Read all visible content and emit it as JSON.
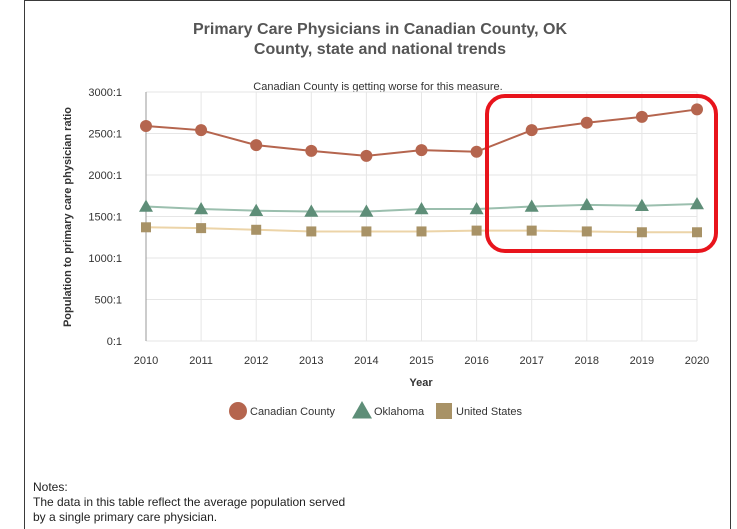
{
  "chart_data": {
    "type": "line",
    "title_line1": "Primary Care Physicians in Canadian County, OK",
    "title_line2": "County, state and national trends",
    "subtitle": "Canadian County is getting worse for this measure.",
    "xlabel": "Year",
    "ylabel": "Population to primary care physician ratio",
    "x": [
      2010,
      2011,
      2012,
      2013,
      2014,
      2015,
      2016,
      2017,
      2018,
      2019,
      2020
    ],
    "ylim": [
      0,
      3000
    ],
    "yticks": [
      {
        "value": 0,
        "label": "0:1"
      },
      {
        "value": 500,
        "label": "500:1"
      },
      {
        "value": 1000,
        "label": "1000:1"
      },
      {
        "value": 1500,
        "label": "1500:1"
      },
      {
        "value": 2000,
        "label": "2000:1"
      },
      {
        "value": 2500,
        "label": "2500:1"
      },
      {
        "value": 3000,
        "label": "3000:1"
      }
    ],
    "grid": true,
    "legend_position": "bottom",
    "series": [
      {
        "name": "Canadian County",
        "marker": "circle",
        "color": "#b5654e",
        "values": [
          2590,
          2540,
          2360,
          2290,
          2230,
          2300,
          2280,
          2540,
          2630,
          2700,
          2790
        ]
      },
      {
        "name": "Oklahoma",
        "marker": "triangle",
        "color": "#5e8e78",
        "line_color": "#9bbfae",
        "values": [
          1620,
          1590,
          1570,
          1560,
          1560,
          1590,
          1590,
          1620,
          1640,
          1630,
          1650
        ]
      },
      {
        "name": "United States",
        "marker": "square",
        "color": "#a89266",
        "line_color": "#ecd4a8",
        "values": [
          1370,
          1360,
          1340,
          1320,
          1320,
          1320,
          1330,
          1330,
          1320,
          1310,
          1310
        ]
      }
    ],
    "highlight_color": "#e8141c"
  },
  "notes": {
    "heading": "Notes:",
    "line1": "The data in this table reflect the average population served",
    "line2": "by a single primary care physician."
  }
}
